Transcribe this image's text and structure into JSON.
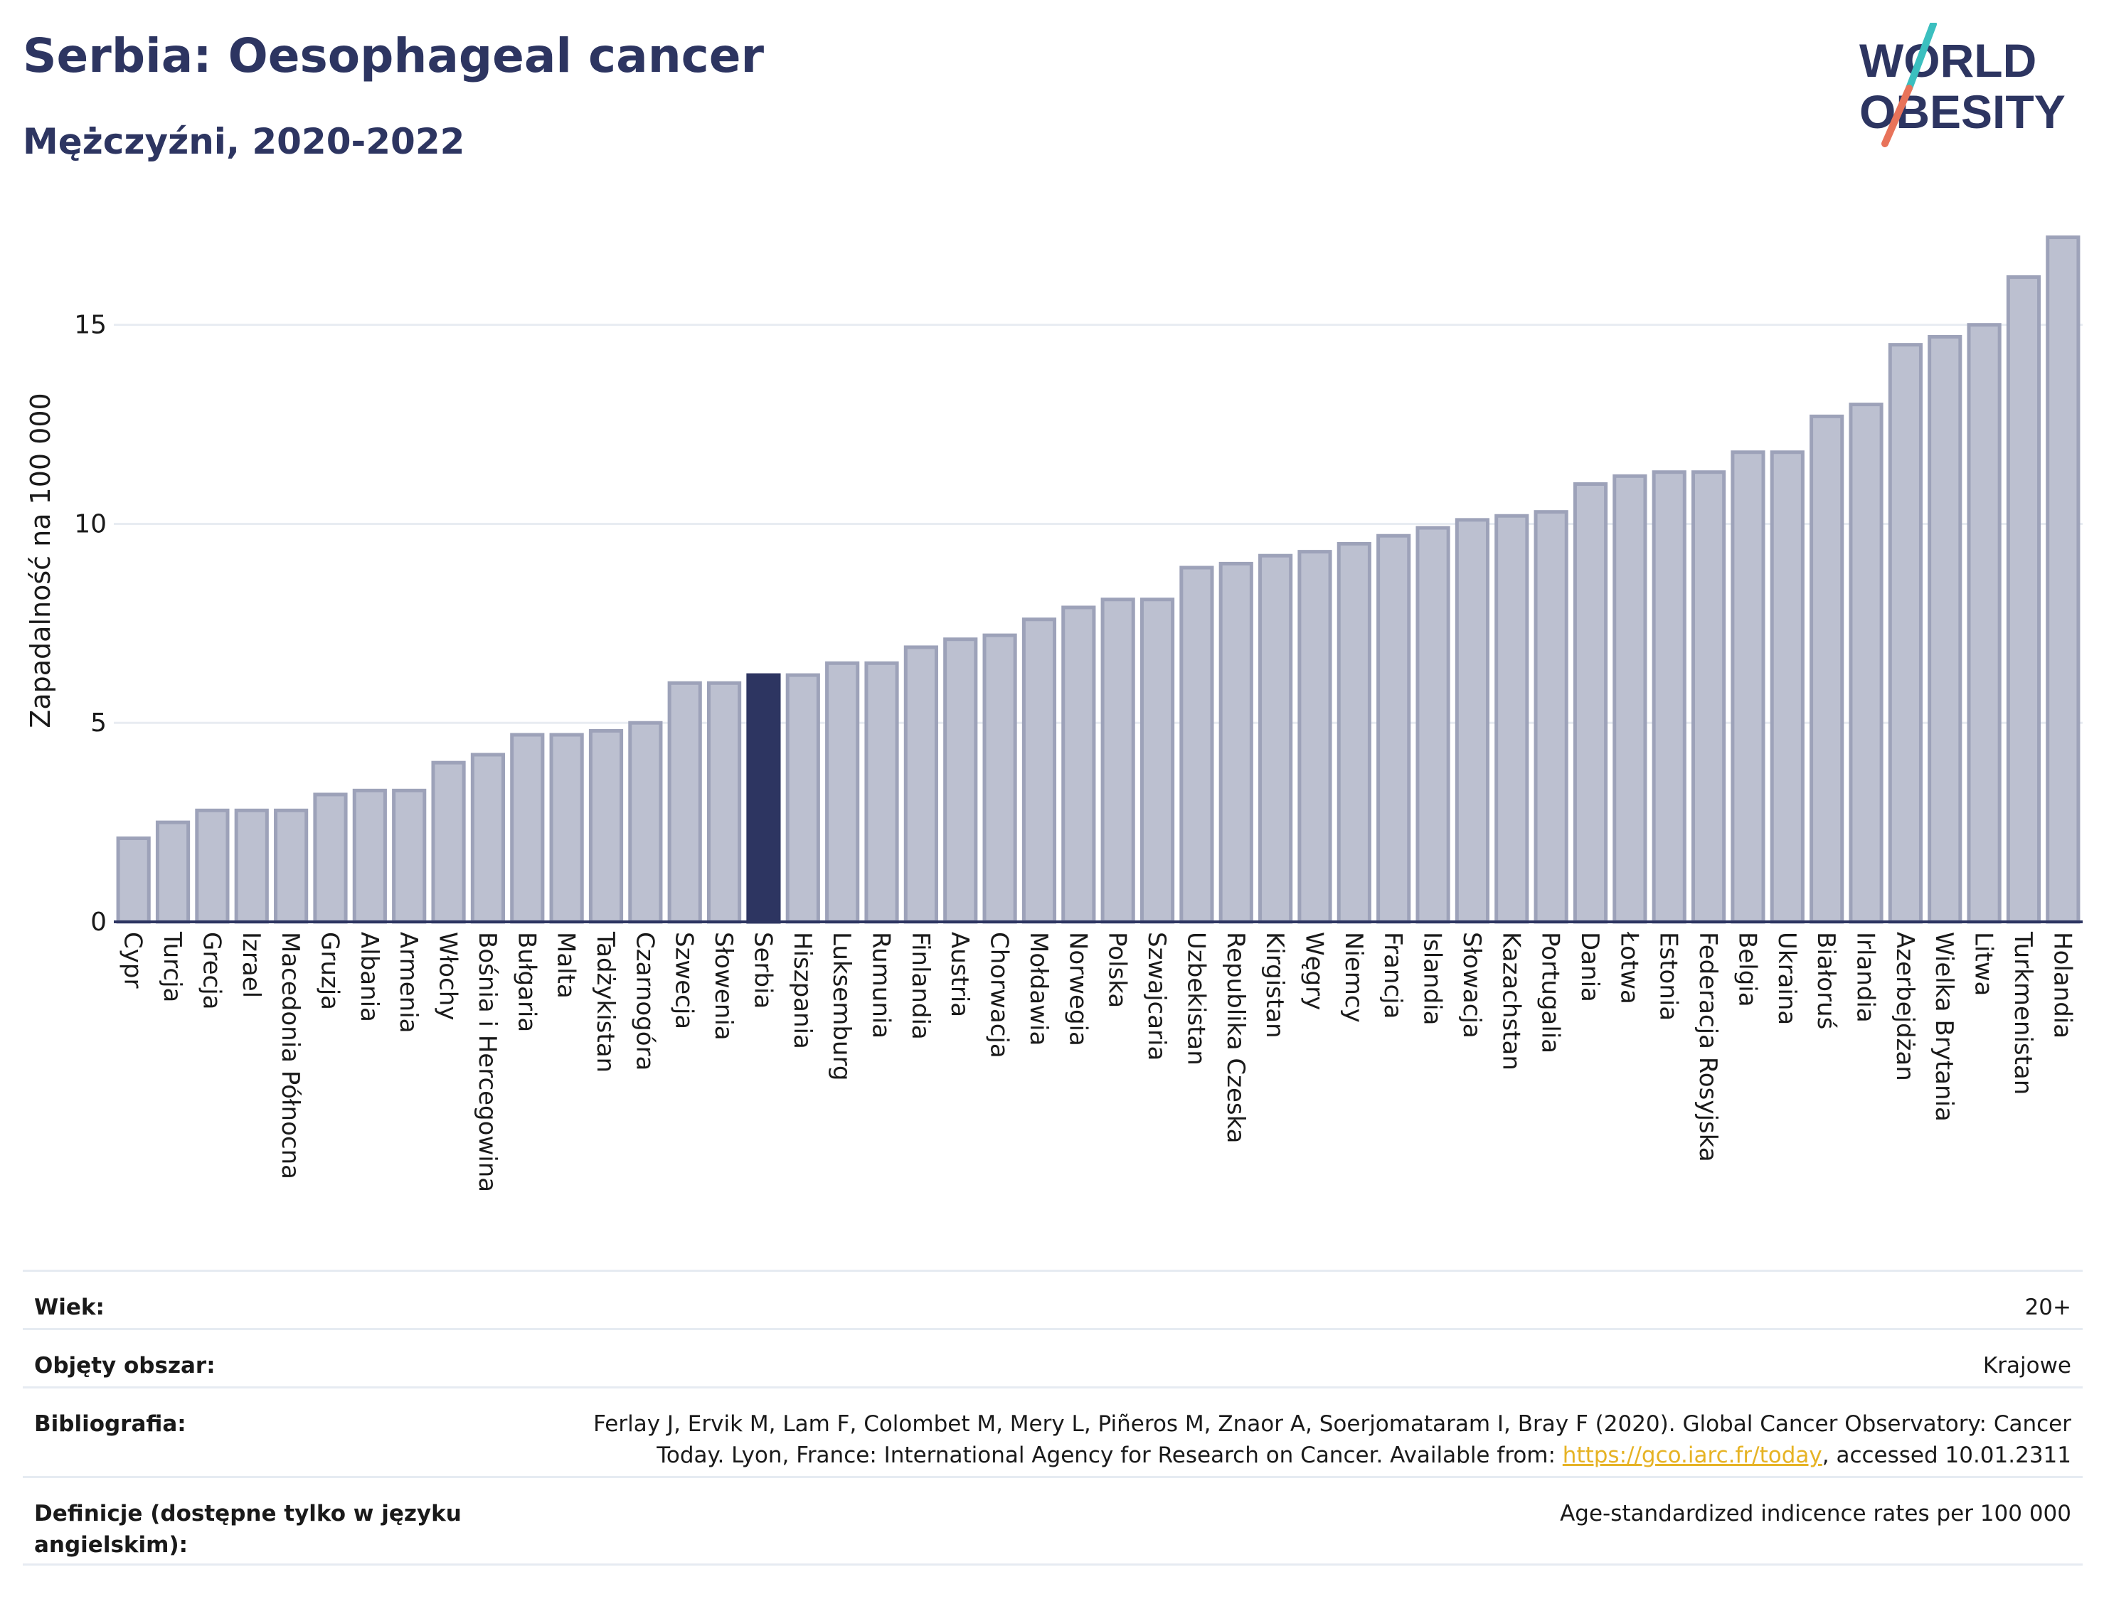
{
  "header": {
    "title": "Serbia: Oesophageal cancer",
    "subtitle": "Mężczyźni, 2020-2022"
  },
  "logo": {
    "line1": "WORLD",
    "line2": "OBESITY",
    "text_color": "#2d3561",
    "slash_top_color": "#3bbfbf",
    "slash_bottom_color": "#e8735a"
  },
  "chart_data": {
    "type": "bar",
    "ylabel": "Zapadalność na 100 000",
    "xlabel": "",
    "ylim": [
      0,
      17.8
    ],
    "yticks": [
      0,
      5,
      10,
      15
    ],
    "grid": true,
    "bar_color": "#bcc0d0",
    "bar_edge_color": "#9da2b9",
    "highlight_color": "#2d3561",
    "highlight_category": "Serbia",
    "categories": [
      "Cypr",
      "Turcja",
      "Grecja",
      "Izrael",
      "Macedonia Północna",
      "Gruzja",
      "Albania",
      "Armenia",
      "Włochy",
      "Bośnia i Hercegowina",
      "Bułgaria",
      "Malta",
      "Tadżykistan",
      "Czarnogóra",
      "Szwecja",
      "Słowenia",
      "Serbia",
      "Hiszpania",
      "Luksemburg",
      "Rumunia",
      "Finlandia",
      "Austria",
      "Chorwacja",
      "Mołdawia",
      "Norwegia",
      "Polska",
      "Szwajcaria",
      "Uzbekistan",
      "Republika Czeska",
      "Kirgistan",
      "Węgry",
      "Niemcy",
      "Francja",
      "Islandia",
      "Słowacja",
      "Kazachstan",
      "Portugalia",
      "Dania",
      "Łotwa",
      "Estonia",
      "Federacja Rosyjska",
      "Belgia",
      "Ukraina",
      "Białoruś",
      "Irlandia",
      "Azerbejdżan",
      "Wielka Brytania",
      "Litwa",
      "Turkmenistan",
      "Holandia"
    ],
    "values": [
      2.1,
      2.5,
      2.8,
      2.8,
      2.8,
      3.2,
      3.3,
      3.3,
      4.0,
      4.2,
      4.7,
      4.7,
      4.8,
      5.0,
      6.0,
      6.0,
      6.2,
      6.2,
      6.5,
      6.5,
      6.9,
      7.1,
      7.2,
      7.6,
      7.9,
      8.1,
      8.1,
      8.9,
      9.0,
      9.2,
      9.3,
      9.5,
      9.7,
      9.9,
      10.1,
      10.2,
      10.3,
      11.0,
      11.2,
      11.3,
      11.3,
      11.8,
      11.8,
      12.7,
      13.0,
      14.5,
      14.7,
      15.0,
      16.2,
      17.2
    ]
  },
  "meta": {
    "age_label": "Wiek:",
    "age_value": "20+",
    "coverage_label": "Objęty obszar:",
    "coverage_value": "Krajowe",
    "bibliography_label": "Bibliografia:",
    "bibliography_line1": "Ferlay J, Ervik M, Lam F, Colombet M, Mery L, Piñeros M, Znaor A, Soerjomataram I, Bray F (2020). Global Cancer Observatory: Cancer",
    "bibliography_line2_pre": "Today. Lyon, France: International Agency for Research on Cancer. Available from: ",
    "bibliography_link": "https://gco.iarc.fr/today",
    "bibliography_line2_post": ", accessed 10.01.2311",
    "definitions_label": "Definicje (dostępne tylko w języku angielskim):",
    "definitions_value": "Age-standardized indicence rates per 100 000"
  }
}
